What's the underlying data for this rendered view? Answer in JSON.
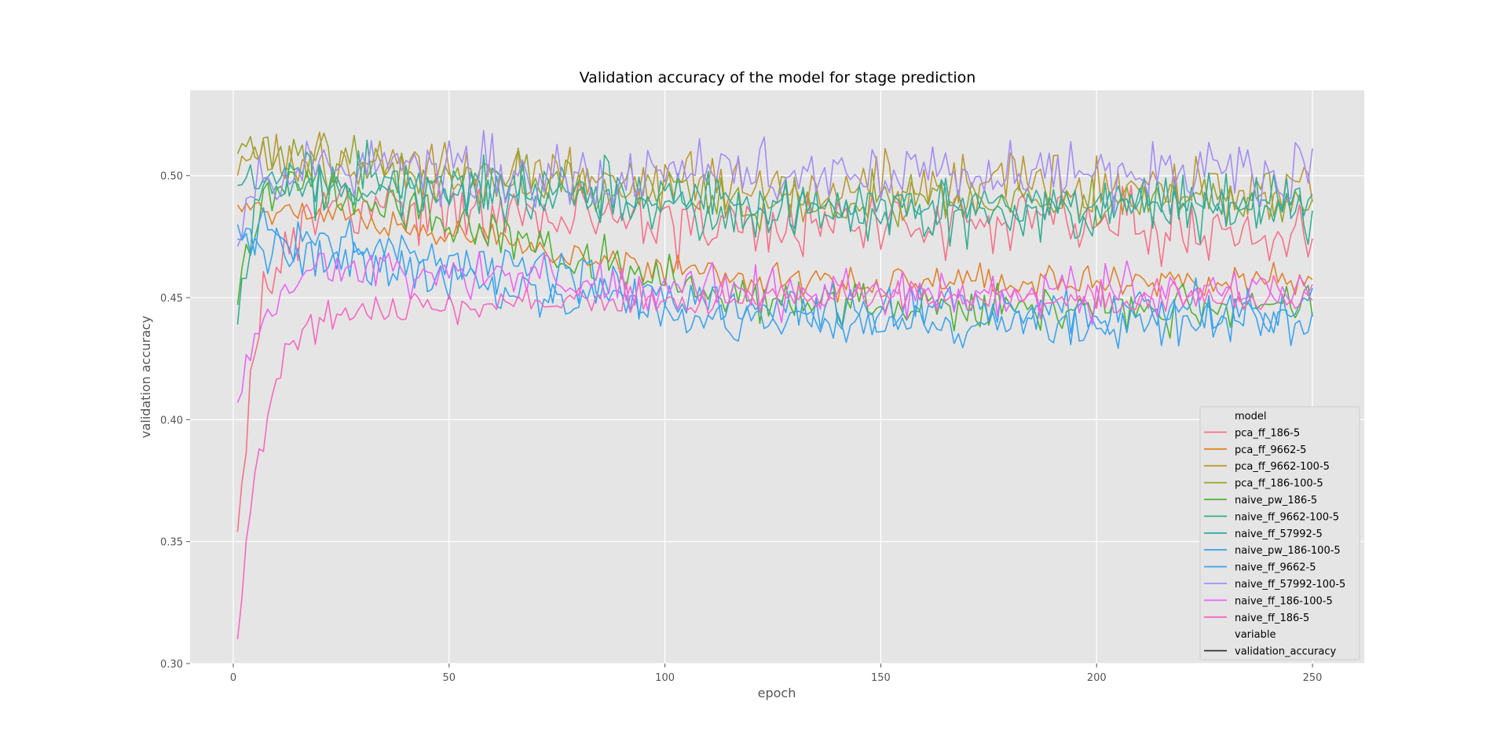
{
  "chart_data": {
    "type": "line",
    "title": "Validation accuracy of the model for stage prediction",
    "xlabel": "epoch",
    "ylabel": "validation accuracy",
    "xlim": [
      -10,
      262
    ],
    "ylim": [
      0.3,
      0.535
    ],
    "x_ticks": [
      0,
      50,
      100,
      150,
      200,
      250
    ],
    "x_tick_labels": [
      "0",
      "50",
      "100",
      "150",
      "200",
      "250"
    ],
    "y_ticks": [
      0.3,
      0.35,
      0.4,
      0.45,
      0.5
    ],
    "y_tick_labels": [
      "0.30",
      "0.35",
      "0.40",
      "0.45",
      "0.50"
    ],
    "grid": true,
    "background": "#e5e5e5",
    "legend": {
      "placement": "bottom-right",
      "hue_title": "model",
      "style_title": "variable",
      "style_entries": [
        {
          "label": "validation_accuracy",
          "color": "#333333"
        }
      ]
    },
    "epochs": [
      1,
      250
    ],
    "series": [
      {
        "name": "pca_ff_186-5",
        "color": "#f77189",
        "start": 0.354,
        "plateau": 0.488,
        "plateau_end": 0.48,
        "rise": 5,
        "noise": 0.009,
        "seed": 1
      },
      {
        "name": "pca_ff_9662-5",
        "color": "#e1812c",
        "start": 0.488,
        "plateau": 0.488,
        "plateau_end": 0.457,
        "rise": 1,
        "noise": 0.004,
        "seed": 2
      },
      {
        "name": "pca_ff_9662-100-5",
        "color": "#bb9832",
        "start": 0.5,
        "plateau": 0.507,
        "plateau_end": 0.495,
        "rise": 3,
        "noise": 0.008,
        "seed": 3
      },
      {
        "name": "pca_ff_186-100-5",
        "color": "#97a431",
        "start": 0.509,
        "plateau": 0.51,
        "plateau_end": 0.49,
        "rise": 3,
        "noise": 0.007,
        "seed": 4
      },
      {
        "name": "naive_pw_186-5",
        "color": "#50b131",
        "start": 0.447,
        "plateau": 0.505,
        "plateau_end": 0.447,
        "rise": 4,
        "noise": 0.006,
        "seed": 5
      },
      {
        "name": "naive_ff_9662-100-5",
        "color": "#34ae91",
        "start": 0.439,
        "plateau": 0.5,
        "plateau_end": 0.486,
        "rise": 3,
        "noise": 0.009,
        "seed": 6
      },
      {
        "name": "naive_ff_57992-5",
        "color": "#37aa9e",
        "start": 0.496,
        "plateau": 0.497,
        "plateau_end": 0.488,
        "rise": 2,
        "noise": 0.006,
        "seed": 7
      },
      {
        "name": "naive_pw_186-100-5",
        "color": "#3ba3ec",
        "start": 0.474,
        "plateau": 0.478,
        "plateau_end": 0.445,
        "rise": 3,
        "noise": 0.006,
        "seed": 8
      },
      {
        "name": "naive_ff_9662-5",
        "color": "#3ba3ec",
        "start": 0.48,
        "plateau": 0.47,
        "plateau_end": 0.44,
        "rise": 2,
        "noise": 0.006,
        "seed": 9
      },
      {
        "name": "naive_ff_57992-100-5",
        "color": "#a48cf4",
        "start": 0.471,
        "plateau": 0.503,
        "plateau_end": 0.5,
        "rise": 3,
        "noise": 0.008,
        "seed": 10
      },
      {
        "name": "naive_ff_186-100-5",
        "color": "#e866f4",
        "start": 0.407,
        "plateau": 0.465,
        "plateau_end": 0.452,
        "rise": 6,
        "noise": 0.006,
        "seed": 11
      },
      {
        "name": "naive_ff_186-5",
        "color": "#f668c2",
        "start": 0.31,
        "plateau": 0.445,
        "plateau_end": 0.45,
        "rise": 6,
        "noise": 0.004,
        "seed": 12
      }
    ]
  }
}
